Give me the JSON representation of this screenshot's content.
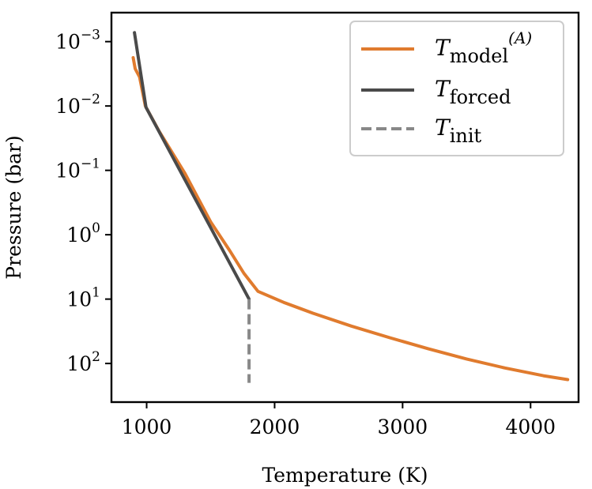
{
  "chart_data": {
    "type": "line",
    "title": "",
    "xlabel": "Temperature (K)",
    "ylabel": "Pressure (bar)",
    "xlim": [
      725,
      4375
    ],
    "ylog_exponent_range": [
      -3.45,
      2.6
    ],
    "y_inverted": true,
    "grid": false,
    "legend_position": "top-right",
    "x_ticks": [
      {
        "value": 1000,
        "label": "1000"
      },
      {
        "value": 2000,
        "label": "2000"
      },
      {
        "value": 3000,
        "label": "3000"
      },
      {
        "value": 4000,
        "label": "4000"
      }
    ],
    "y_ticks": [
      {
        "exp": -3,
        "base": "10",
        "sup": "−3"
      },
      {
        "exp": -2,
        "base": "10",
        "sup": "−2"
      },
      {
        "exp": -1,
        "base": "10",
        "sup": "−1"
      },
      {
        "exp": 0,
        "base": "10",
        "sup": "0"
      },
      {
        "exp": 1,
        "base": "10",
        "sup": "1"
      },
      {
        "exp": 2,
        "base": "10",
        "sup": "2"
      }
    ],
    "series": [
      {
        "name": "T_model(A)",
        "legend_main": "T",
        "legend_sub": "model",
        "legend_sup": "(A)",
        "color": "#E07B2E",
        "dash": "solid",
        "points": [
          {
            "T": 895,
            "log10P": -2.75
          },
          {
            "T": 910,
            "log10P": -2.58
          },
          {
            "T": 945,
            "log10P": -2.45
          },
          {
            "T": 990,
            "log10P": -2.0
          },
          {
            "T": 1100,
            "log10P": -1.6
          },
          {
            "T": 1300,
            "log10P": -0.95
          },
          {
            "T": 1500,
            "log10P": -0.2
          },
          {
            "T": 1650,
            "log10P": 0.25
          },
          {
            "T": 1760,
            "log10P": 0.6
          },
          {
            "T": 1870,
            "log10P": 0.88
          },
          {
            "T": 2070,
            "log10P": 1.05
          },
          {
            "T": 2300,
            "log10P": 1.22
          },
          {
            "T": 2600,
            "log10P": 1.42
          },
          {
            "T": 2900,
            "log10P": 1.6
          },
          {
            "T": 3200,
            "log10P": 1.77
          },
          {
            "T": 3500,
            "log10P": 1.93
          },
          {
            "T": 3800,
            "log10P": 2.07
          },
          {
            "T": 4100,
            "log10P": 2.19
          },
          {
            "T": 4290,
            "log10P": 2.25
          }
        ]
      },
      {
        "name": "T_forced",
        "legend_main": "T",
        "legend_sub": "forced",
        "legend_sup": "",
        "color": "#4A4A4A",
        "dash": "solid",
        "points": [
          {
            "T": 905,
            "log10P": -3.14
          },
          {
            "T": 995,
            "log10P": -1.98
          },
          {
            "T": 1800,
            "log10P": 1.0
          }
        ]
      },
      {
        "name": "T_init",
        "legend_main": "T",
        "legend_sub": "init",
        "legend_sup": "",
        "color": "#888888",
        "dash": "dashed",
        "points": [
          {
            "T": 1800,
            "log10P": 1.0
          },
          {
            "T": 1800,
            "log10P": 2.3
          }
        ]
      }
    ]
  }
}
